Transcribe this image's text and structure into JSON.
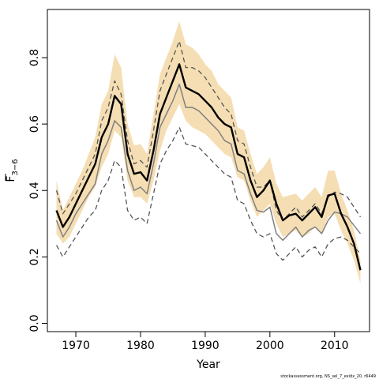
{
  "chart_data": {
    "type": "line",
    "xlabel": "Year",
    "ylabel_main": "F",
    "ylabel_sub": "3−6",
    "footnote": "stockassessment.org, NS_sel_7_exidx_20, r6449",
    "xlim": [
      1965.6,
      2015.4
    ],
    "ylim": [
      -0.025,
      0.945
    ],
    "x_ticks": [
      1970,
      1980,
      1990,
      2000,
      2010
    ],
    "y_ticks": [
      0.0,
      0.2,
      0.4,
      0.6,
      0.8
    ],
    "y_tick_labels": [
      "0.0",
      "0.2",
      "0.4",
      "0.6",
      "0.8"
    ],
    "colors": {
      "band": "#f5deb3",
      "estimate": "#000000",
      "alt": "#808080"
    },
    "years": [
      1967,
      1968,
      1969,
      1970,
      1971,
      1972,
      1973,
      1974,
      1975,
      1976,
      1977,
      1978,
      1979,
      1980,
      1981,
      1982,
      1983,
      1984,
      1985,
      1986,
      1987,
      1988,
      1989,
      1990,
      1991,
      1992,
      1993,
      1994,
      1995,
      1996,
      1997,
      1998,
      1999,
      2000,
      2001,
      2002,
      2003,
      2004,
      2005,
      2006,
      2007,
      2008,
      2009,
      2010,
      2011,
      2012,
      2013,
      2014
    ],
    "series": [
      {
        "role": "estimate",
        "values": [
          0.34,
          0.29,
          0.32,
          0.36,
          0.4,
          0.44,
          0.48,
          0.56,
          0.6,
          0.685,
          0.66,
          0.51,
          0.45,
          0.455,
          0.43,
          0.52,
          0.63,
          0.68,
          0.73,
          0.78,
          0.71,
          0.7,
          0.69,
          0.67,
          0.65,
          0.62,
          0.6,
          0.59,
          0.51,
          0.5,
          0.43,
          0.38,
          0.4,
          0.43,
          0.36,
          0.31,
          0.325,
          0.33,
          0.31,
          0.33,
          0.35,
          0.32,
          0.385,
          0.39,
          0.33,
          0.29,
          0.24,
          0.16
        ]
      },
      {
        "role": "ci_upper",
        "values": [
          0.43,
          0.34,
          0.38,
          0.42,
          0.46,
          0.51,
          0.56,
          0.66,
          0.7,
          0.81,
          0.77,
          0.6,
          0.535,
          0.54,
          0.51,
          0.63,
          0.75,
          0.8,
          0.85,
          0.91,
          0.84,
          0.83,
          0.81,
          0.78,
          0.76,
          0.72,
          0.7,
          0.68,
          0.59,
          0.58,
          0.51,
          0.45,
          0.47,
          0.5,
          0.42,
          0.38,
          0.385,
          0.39,
          0.37,
          0.39,
          0.41,
          0.38,
          0.46,
          0.46,
          0.39,
          0.34,
          0.28,
          0.19
        ]
      },
      {
        "role": "ci_lower",
        "values": [
          0.27,
          0.24,
          0.26,
          0.3,
          0.34,
          0.38,
          0.41,
          0.47,
          0.51,
          0.58,
          0.56,
          0.43,
          0.38,
          0.38,
          0.36,
          0.43,
          0.52,
          0.58,
          0.62,
          0.66,
          0.61,
          0.59,
          0.58,
          0.57,
          0.55,
          0.53,
          0.51,
          0.5,
          0.44,
          0.43,
          0.37,
          0.32,
          0.34,
          0.36,
          0.3,
          0.26,
          0.27,
          0.28,
          0.26,
          0.27,
          0.29,
          0.27,
          0.32,
          0.33,
          0.28,
          0.24,
          0.19,
          0.12
        ]
      },
      {
        "role": "alt_estimate",
        "values": [
          0.31,
          0.26,
          0.29,
          0.33,
          0.36,
          0.39,
          0.42,
          0.51,
          0.55,
          0.61,
          0.59,
          0.46,
          0.4,
          0.41,
          0.39,
          0.48,
          0.59,
          0.63,
          0.67,
          0.72,
          0.65,
          0.65,
          0.64,
          0.62,
          0.6,
          0.58,
          0.55,
          0.54,
          0.46,
          0.45,
          0.39,
          0.34,
          0.335,
          0.35,
          0.27,
          0.25,
          0.27,
          0.29,
          0.26,
          0.28,
          0.29,
          0.27,
          0.31,
          0.335,
          0.33,
          0.32,
          0.295,
          0.27
        ]
      },
      {
        "role": "alt_upper",
        "values": [
          0.4,
          0.33,
          0.36,
          0.39,
          0.43,
          0.47,
          0.51,
          0.61,
          0.65,
          0.73,
          0.69,
          0.55,
          0.48,
          0.49,
          0.47,
          0.58,
          0.7,
          0.75,
          0.8,
          0.85,
          0.77,
          0.77,
          0.76,
          0.74,
          0.71,
          0.68,
          0.65,
          0.63,
          0.55,
          0.54,
          0.47,
          0.41,
          0.41,
          0.43,
          0.34,
          0.31,
          0.33,
          0.35,
          0.32,
          0.34,
          0.36,
          0.33,
          0.38,
          0.395,
          0.39,
          0.38,
          0.35,
          0.32
        ]
      },
      {
        "role": "alt_lower",
        "values": [
          0.235,
          0.2,
          0.23,
          0.26,
          0.29,
          0.32,
          0.34,
          0.4,
          0.43,
          0.49,
          0.47,
          0.34,
          0.31,
          0.32,
          0.3,
          0.39,
          0.48,
          0.52,
          0.55,
          0.59,
          0.54,
          0.535,
          0.53,
          0.51,
          0.49,
          0.47,
          0.45,
          0.44,
          0.37,
          0.36,
          0.31,
          0.27,
          0.26,
          0.27,
          0.21,
          0.19,
          0.21,
          0.23,
          0.2,
          0.22,
          0.23,
          0.2,
          0.24,
          0.255,
          0.26,
          0.25,
          0.23,
          0.21
        ]
      }
    ]
  }
}
